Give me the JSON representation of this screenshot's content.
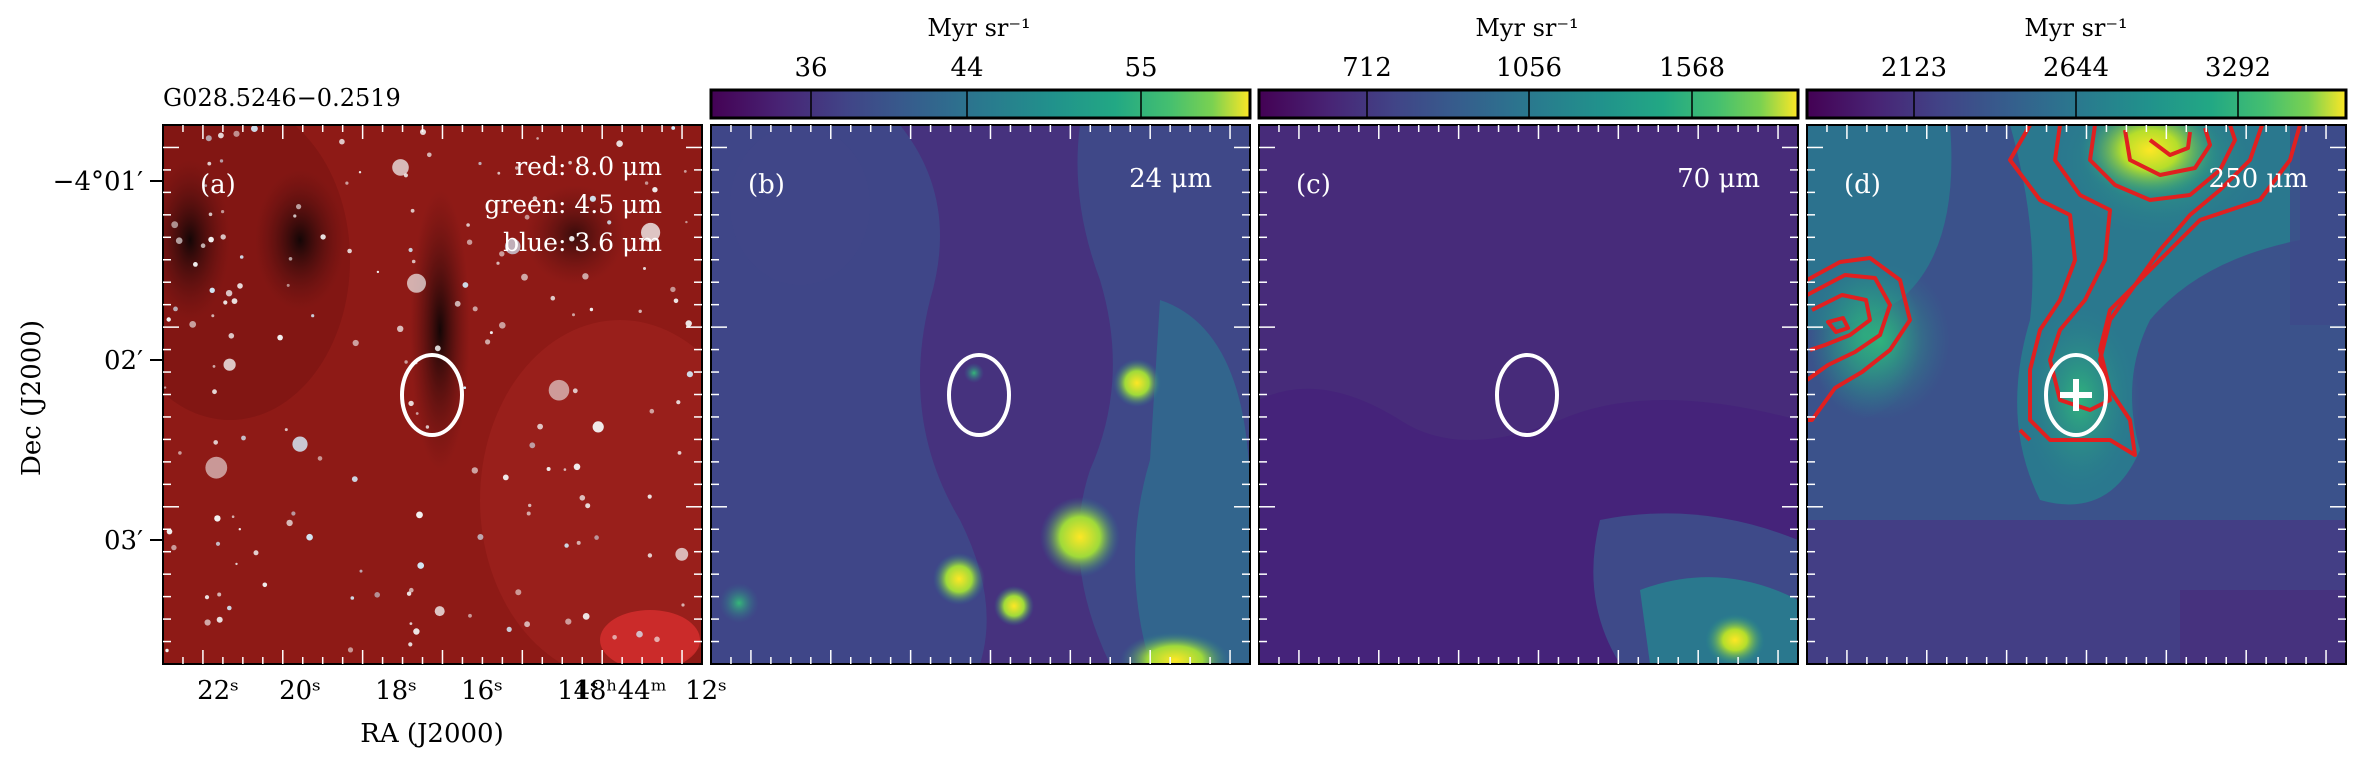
{
  "source_name": "G028.5246−0.2519",
  "colorbar_unit": "Myr sr⁻¹",
  "panels": [
    {
      "id": "a",
      "tag": "(a)",
      "legend": [
        "red: 8.0 μm",
        "green: 4.5 μm",
        "blue: 3.6 μm"
      ]
    },
    {
      "id": "b",
      "tag": "(b)",
      "band": "24 μm",
      "colorbar_ticks": [
        "36",
        "44",
        "55"
      ]
    },
    {
      "id": "c",
      "tag": "(c)",
      "band": "70 μm",
      "colorbar_ticks": [
        "712",
        "1056",
        "1568"
      ]
    },
    {
      "id": "d",
      "tag": "(d)",
      "band": "250 μm",
      "colorbar_ticks": [
        "2123",
        "2644",
        "3292"
      ]
    }
  ],
  "axes": {
    "ylabel": "Dec (J2000)",
    "xlabel": "RA (J2000)",
    "y_ticks": [
      "−4°01′",
      "02′",
      "03′"
    ],
    "x_ticks": [
      "22ˢ",
      "20ˢ",
      "18ˢ",
      "16ˢ",
      "14ˢ",
      "18ʰ44ᵐ",
      "12ˢ"
    ]
  },
  "colors": {
    "contour": "#e02020",
    "marker": "#ffffff",
    "viridis_low": "#440154",
    "viridis_high": "#fde725"
  }
}
